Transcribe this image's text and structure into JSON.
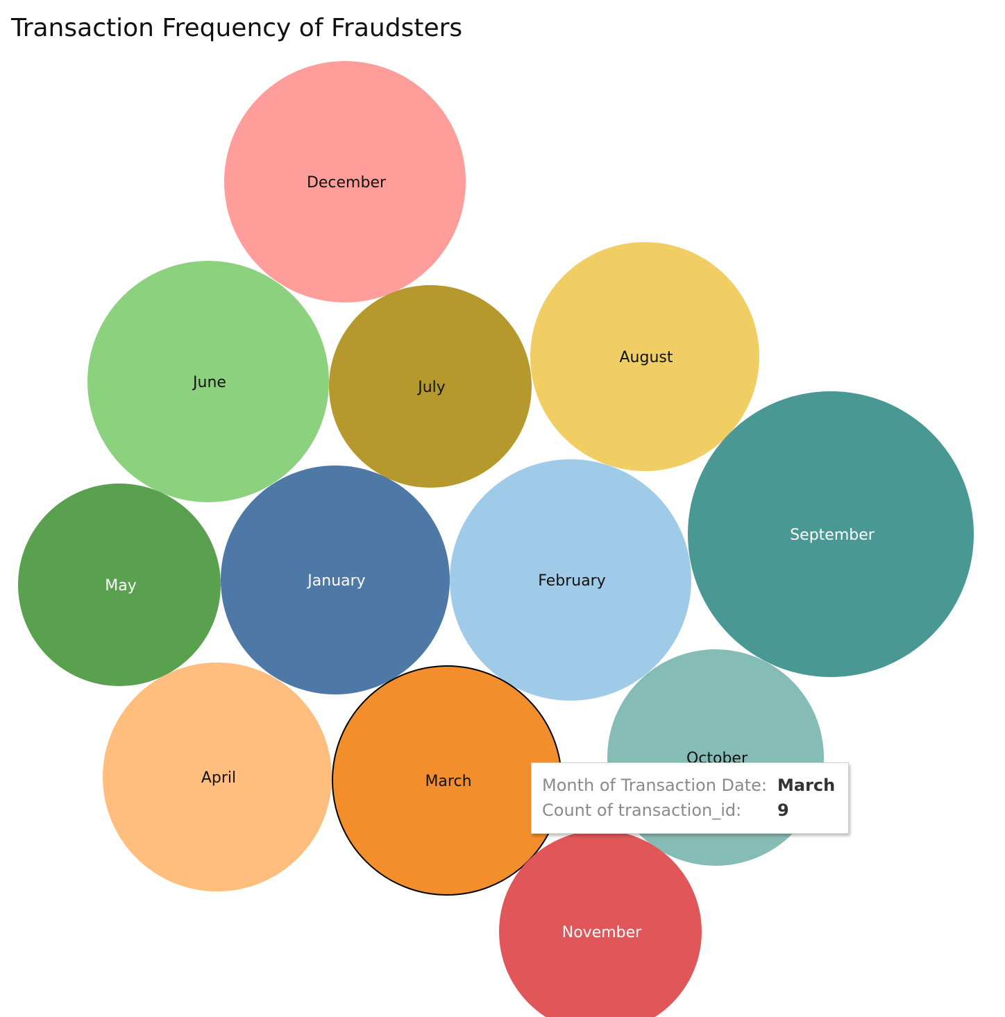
{
  "chart_data": {
    "type": "bubble",
    "title": "Transaction Frequency of Fraudsters",
    "measure": "Count of transaction_id",
    "dimension": "Month of Transaction Date",
    "bubbles": [
      {
        "label": "December",
        "value": 10,
        "color": "#ff9d9a",
        "text_color": "#111111"
      },
      {
        "label": "June",
        "value": 10,
        "color": "#8cd17d",
        "text_color": "#111111"
      },
      {
        "label": "July",
        "value": 7,
        "color": "#b6992d",
        "text_color": "#111111"
      },
      {
        "label": "August",
        "value": 9,
        "color": "#f1ce63",
        "text_color": "#111111"
      },
      {
        "label": "September",
        "value": 14,
        "color": "#499894",
        "text_color": "#ffffff"
      },
      {
        "label": "May",
        "value": 7,
        "color": "#59a14f",
        "text_color": "#ffffff"
      },
      {
        "label": "January",
        "value": 9,
        "color": "#4e79a7",
        "text_color": "#ffffff"
      },
      {
        "label": "February",
        "value": 10,
        "color": "#a0cbe8",
        "text_color": "#111111"
      },
      {
        "label": "October",
        "value": 8,
        "color": "#86bcb6",
        "text_color": "#111111"
      },
      {
        "label": "April",
        "value": 9,
        "color": "#ffbe7d",
        "text_color": "#111111"
      },
      {
        "label": "March",
        "value": 9,
        "color": "#f28e2b",
        "text_color": "#111111",
        "highlighted": true
      },
      {
        "label": "November",
        "value": 7,
        "color": "#e15759",
        "text_color": "#ffffff"
      }
    ]
  },
  "tooltip": {
    "row1_key": "Month of Transaction Date:",
    "row1_value": "March",
    "row2_key": "Count of transaction_id:",
    "row2_value": "9"
  }
}
